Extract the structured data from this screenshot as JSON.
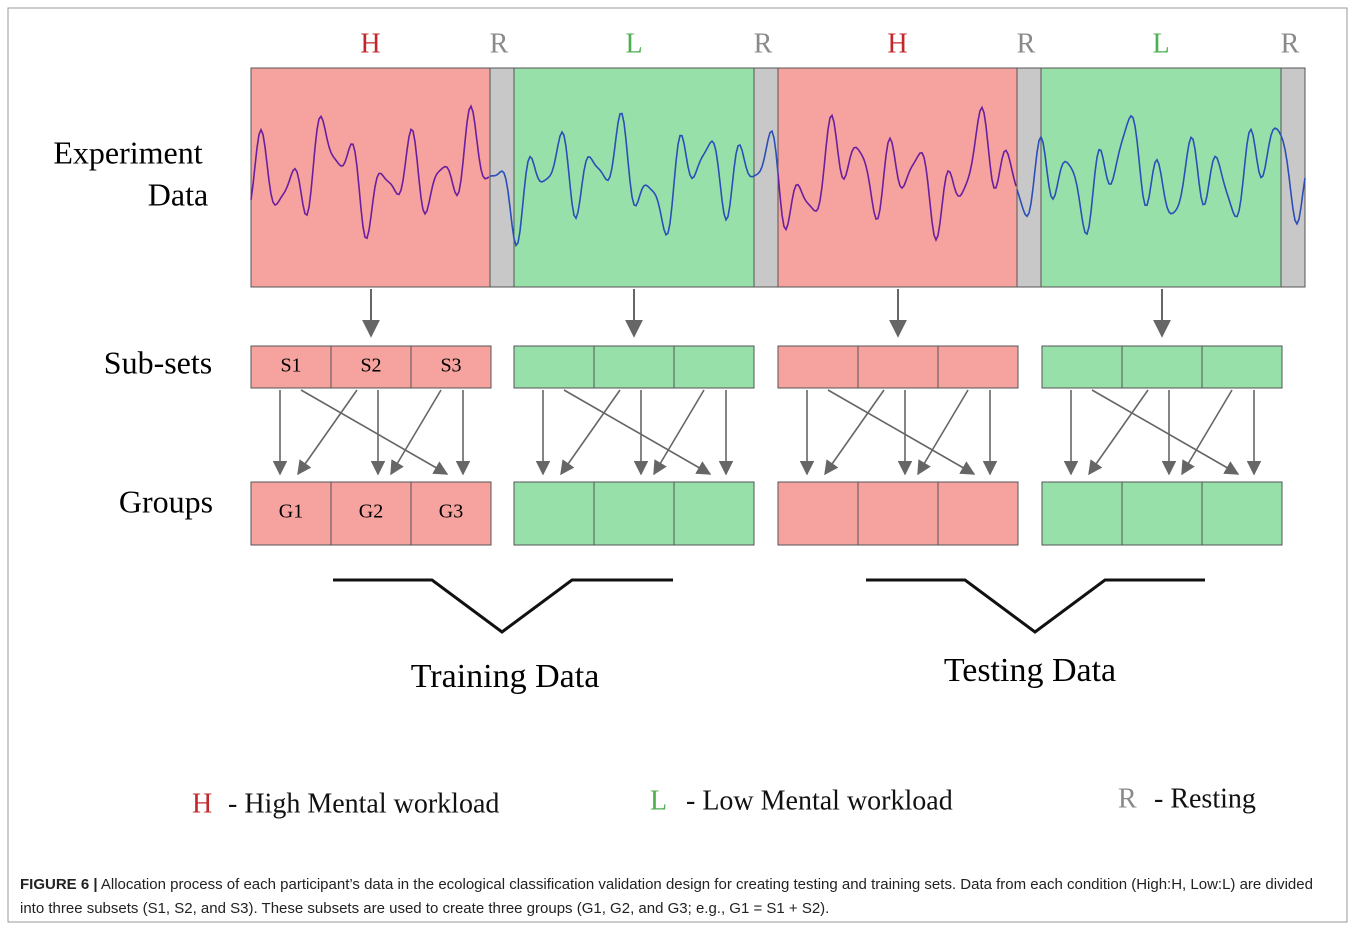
{
  "segments": [
    "H",
    "R",
    "L",
    "R",
    "H",
    "R",
    "L",
    "R"
  ],
  "row_labels": {
    "experiment": [
      "Experiment",
      "Data"
    ],
    "subsets": "Sub-sets",
    "groups": "Groups"
  },
  "subsets": [
    "S1",
    "S2",
    "S3"
  ],
  "groups": [
    "G1",
    "G2",
    "G3"
  ],
  "brackets": [
    "Training Data",
    "Testing Data"
  ],
  "legend": [
    {
      "key": "H",
      "text": "- High Mental workload"
    },
    {
      "key": "L",
      "text": "- Low Mental workload"
    },
    {
      "key": "R",
      "text": "- Resting"
    }
  ],
  "caption": {
    "label": "FIGURE 6 |",
    "text": "Allocation process of each participant’s data in the ecological classification validation design for creating testing and training sets. Data from each condition (High:H, Low:L) are divided into three subsets (S1, S2, and S3). These subsets are used to create three groups (G1, G2, and G3; e.g., G1 = S1 + S2)."
  }
}
